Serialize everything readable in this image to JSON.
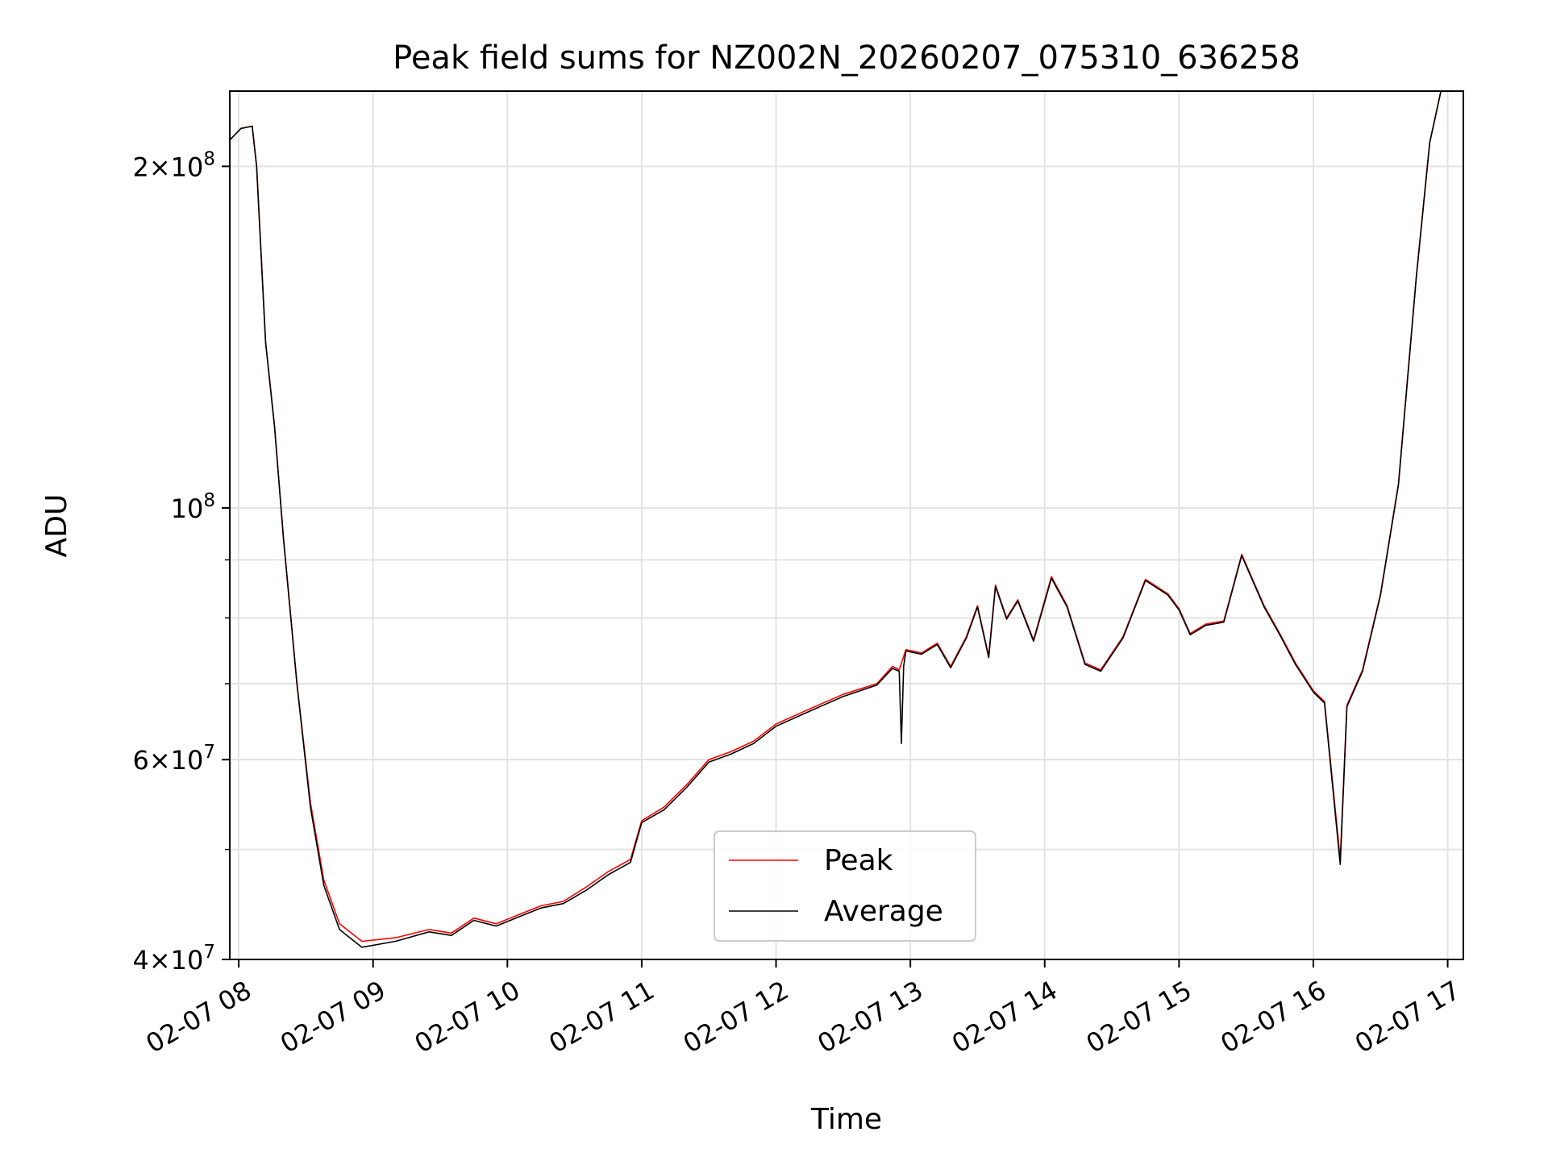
{
  "chart_data": {
    "type": "line",
    "title": "Peak field sums for NZ002N_20260207_075310_636258",
    "xlabel": "Time",
    "ylabel": "ADU",
    "yscale": "log",
    "ylim": [
      40000000,
      233000000
    ],
    "xlim": [
      "2026-02-07 07:56",
      "2026-02-07 17:07"
    ],
    "grid": true,
    "legend_placement": "lower center",
    "x_ticks": [
      {
        "t": "2026-02-07 08:00",
        "label": "02-07 08"
      },
      {
        "t": "2026-02-07 09:00",
        "label": "02-07 09"
      },
      {
        "t": "2026-02-07 10:00",
        "label": "02-07 10"
      },
      {
        "t": "2026-02-07 11:00",
        "label": "02-07 11"
      },
      {
        "t": "2026-02-07 12:00",
        "label": "02-07 12"
      },
      {
        "t": "2026-02-07 13:00",
        "label": "02-07 13"
      },
      {
        "t": "2026-02-07 14:00",
        "label": "02-07 14"
      },
      {
        "t": "2026-02-07 15:00",
        "label": "02-07 15"
      },
      {
        "t": "2026-02-07 16:00",
        "label": "02-07 16"
      },
      {
        "t": "2026-02-07 17:00",
        "label": "02-07 17"
      }
    ],
    "y_major_ticks": [
      {
        "value": 40000000,
        "base": "4",
        "exp": "7"
      },
      {
        "value": 60000000,
        "base": "6",
        "exp": "7"
      },
      {
        "value": 100000000,
        "base": "",
        "exp": "8"
      },
      {
        "value": 200000000,
        "base": "2",
        "exp": "8"
      }
    ],
    "y_minor_ticks": [
      50000000,
      70000000,
      80000000,
      90000000
    ],
    "series": [
      {
        "name": "Peak",
        "color": "#ff0000",
        "points": [
          [
            "2026-02-07 07:56",
            211000000
          ],
          [
            "2026-02-07 08:01",
            216000000
          ],
          [
            "2026-02-07 08:06",
            217000000
          ],
          [
            "2026-02-07 08:08",
            200000000
          ],
          [
            "2026-02-07 08:12",
            140000000
          ],
          [
            "2026-02-07 08:16",
            118000000
          ],
          [
            "2026-02-07 08:20",
            94000000
          ],
          [
            "2026-02-07 08:26",
            70000000
          ],
          [
            "2026-02-07 08:32",
            55000000
          ],
          [
            "2026-02-07 08:38",
            47000000
          ],
          [
            "2026-02-07 08:45",
            43000000
          ],
          [
            "2026-02-07 08:55",
            41500000
          ],
          [
            "2026-02-07 09:10",
            41800000
          ],
          [
            "2026-02-07 09:25",
            42500000
          ],
          [
            "2026-02-07 09:35",
            42200000
          ],
          [
            "2026-02-07 09:45",
            43500000
          ],
          [
            "2026-02-07 09:55",
            43000000
          ],
          [
            "2026-02-07 10:05",
            43800000
          ],
          [
            "2026-02-07 10:15",
            44600000
          ],
          [
            "2026-02-07 10:25",
            45000000
          ],
          [
            "2026-02-07 10:35",
            46300000
          ],
          [
            "2026-02-07 10:45",
            47800000
          ],
          [
            "2026-02-07 10:55",
            49000000
          ],
          [
            "2026-02-07 11:00",
            53000000
          ],
          [
            "2026-02-07 11:10",
            54500000
          ],
          [
            "2026-02-07 11:20",
            57000000
          ],
          [
            "2026-02-07 11:30",
            60000000
          ],
          [
            "2026-02-07 11:40",
            61000000
          ],
          [
            "2026-02-07 11:50",
            62300000
          ],
          [
            "2026-02-07 12:00",
            64500000
          ],
          [
            "2026-02-07 12:15",
            66500000
          ],
          [
            "2026-02-07 12:30",
            68500000
          ],
          [
            "2026-02-07 12:45",
            70000000
          ],
          [
            "2026-02-07 12:52",
            72500000
          ],
          [
            "2026-02-07 12:55",
            72000000
          ],
          [
            "2026-02-07 12:58",
            75000000
          ],
          [
            "2026-02-07 13:05",
            74500000
          ],
          [
            "2026-02-07 13:12",
            76000000
          ],
          [
            "2026-02-07 13:18",
            72500000
          ],
          [
            "2026-02-07 13:25",
            77000000
          ],
          [
            "2026-02-07 13:30",
            82000000
          ],
          [
            "2026-02-07 13:35",
            74000000
          ],
          [
            "2026-02-07 13:38",
            85500000
          ],
          [
            "2026-02-07 13:43",
            80000000
          ],
          [
            "2026-02-07 13:48",
            83000000
          ],
          [
            "2026-02-07 13:55",
            76500000
          ],
          [
            "2026-02-07 14:03",
            87000000
          ],
          [
            "2026-02-07 14:10",
            82000000
          ],
          [
            "2026-02-07 14:18",
            73000000
          ],
          [
            "2026-02-07 14:25",
            72000000
          ],
          [
            "2026-02-07 14:35",
            77000000
          ],
          [
            "2026-02-07 14:45",
            86500000
          ],
          [
            "2026-02-07 14:55",
            84000000
          ],
          [
            "2026-02-07 15:00",
            81500000
          ],
          [
            "2026-02-07 15:05",
            77500000
          ],
          [
            "2026-02-07 15:12",
            79000000
          ],
          [
            "2026-02-07 15:20",
            79500000
          ],
          [
            "2026-02-07 15:28",
            91000000
          ],
          [
            "2026-02-07 15:38",
            82000000
          ],
          [
            "2026-02-07 15:45",
            77500000
          ],
          [
            "2026-02-07 15:52",
            73000000
          ],
          [
            "2026-02-07 16:00",
            69000000
          ],
          [
            "2026-02-07 16:05",
            67500000
          ],
          [
            "2026-02-07 16:12",
            49000000
          ],
          [
            "2026-02-07 16:15",
            67000000
          ],
          [
            "2026-02-07 16:22",
            72000000
          ],
          [
            "2026-02-07 16:30",
            84000000
          ],
          [
            "2026-02-07 16:38",
            105000000
          ],
          [
            "2026-02-07 16:46",
            160000000
          ],
          [
            "2026-02-07 16:52",
            210000000
          ],
          [
            "2026-02-07 16:57",
            233000000
          ]
        ]
      },
      {
        "name": "Average",
        "color": "#000000",
        "points": [
          [
            "2026-02-07 07:56",
            211000000
          ],
          [
            "2026-02-07 08:01",
            216000000
          ],
          [
            "2026-02-07 08:06",
            217000000
          ],
          [
            "2026-02-07 08:08",
            200000000
          ],
          [
            "2026-02-07 08:12",
            140000000
          ],
          [
            "2026-02-07 08:16",
            118000000
          ],
          [
            "2026-02-07 08:20",
            94000000
          ],
          [
            "2026-02-07 08:26",
            70000000
          ],
          [
            "2026-02-07 08:32",
            54500000
          ],
          [
            "2026-02-07 08:38",
            46500000
          ],
          [
            "2026-02-07 08:45",
            42500000
          ],
          [
            "2026-02-07 08:55",
            41000000
          ],
          [
            "2026-02-07 09:10",
            41500000
          ],
          [
            "2026-02-07 09:25",
            42300000
          ],
          [
            "2026-02-07 09:35",
            42000000
          ],
          [
            "2026-02-07 09:45",
            43300000
          ],
          [
            "2026-02-07 09:55",
            42800000
          ],
          [
            "2026-02-07 10:05",
            43600000
          ],
          [
            "2026-02-07 10:15",
            44400000
          ],
          [
            "2026-02-07 10:25",
            44800000
          ],
          [
            "2026-02-07 10:35",
            46000000
          ],
          [
            "2026-02-07 10:45",
            47500000
          ],
          [
            "2026-02-07 10:55",
            48700000
          ],
          [
            "2026-02-07 11:00",
            52800000
          ],
          [
            "2026-02-07 11:10",
            54200000
          ],
          [
            "2026-02-07 11:20",
            56700000
          ],
          [
            "2026-02-07 11:30",
            59700000
          ],
          [
            "2026-02-07 11:40",
            60700000
          ],
          [
            "2026-02-07 11:50",
            62000000
          ],
          [
            "2026-02-07 12:00",
            64200000
          ],
          [
            "2026-02-07 12:15",
            66200000
          ],
          [
            "2026-02-07 12:30",
            68200000
          ],
          [
            "2026-02-07 12:45",
            69800000
          ],
          [
            "2026-02-07 12:52",
            72200000
          ],
          [
            "2026-02-07 12:55",
            71800000
          ],
          [
            "2026-02-07 12:56",
            62000000
          ],
          [
            "2026-02-07 12:57",
            72500000
          ],
          [
            "2026-02-07 12:58",
            74800000
          ],
          [
            "2026-02-07 13:05",
            74300000
          ],
          [
            "2026-02-07 13:12",
            75800000
          ],
          [
            "2026-02-07 13:18",
            72300000
          ],
          [
            "2026-02-07 13:25",
            76800000
          ],
          [
            "2026-02-07 13:30",
            81800000
          ],
          [
            "2026-02-07 13:35",
            73800000
          ],
          [
            "2026-02-07 13:38",
            85300000
          ],
          [
            "2026-02-07 13:43",
            79800000
          ],
          [
            "2026-02-07 13:48",
            82800000
          ],
          [
            "2026-02-07 13:55",
            76300000
          ],
          [
            "2026-02-07 14:03",
            86700000
          ],
          [
            "2026-02-07 14:10",
            81800000
          ],
          [
            "2026-02-07 14:18",
            72800000
          ],
          [
            "2026-02-07 14:25",
            71800000
          ],
          [
            "2026-02-07 14:35",
            76800000
          ],
          [
            "2026-02-07 14:45",
            86300000
          ],
          [
            "2026-02-07 14:55",
            83800000
          ],
          [
            "2026-02-07 15:00",
            81300000
          ],
          [
            "2026-02-07 15:05",
            77300000
          ],
          [
            "2026-02-07 15:12",
            78800000
          ],
          [
            "2026-02-07 15:20",
            79300000
          ],
          [
            "2026-02-07 15:28",
            90800000
          ],
          [
            "2026-02-07 15:38",
            81800000
          ],
          [
            "2026-02-07 15:45",
            77300000
          ],
          [
            "2026-02-07 15:52",
            72800000
          ],
          [
            "2026-02-07 16:00",
            68800000
          ],
          [
            "2026-02-07 16:05",
            67300000
          ],
          [
            "2026-02-07 16:12",
            48500000
          ],
          [
            "2026-02-07 16:15",
            66800000
          ],
          [
            "2026-02-07 16:22",
            71800000
          ],
          [
            "2026-02-07 16:30",
            83800000
          ],
          [
            "2026-02-07 16:38",
            104800000
          ],
          [
            "2026-02-07 16:46",
            159800000
          ],
          [
            "2026-02-07 16:52",
            209800000
          ],
          [
            "2026-02-07 16:57",
            233000000
          ]
        ]
      }
    ]
  }
}
